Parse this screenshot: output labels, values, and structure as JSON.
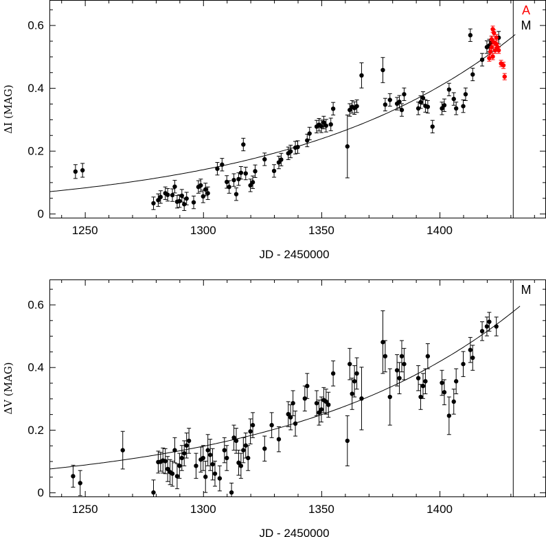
{
  "chart_data": [
    {
      "type": "scatter",
      "xlabel": "JD - 2450000",
      "ylabel": "ΔI (MAG)",
      "xlim": [
        1235,
        1445
      ],
      "ylim": [
        -0.015,
        0.68
      ],
      "xticks": [
        "1250",
        "1300",
        "1350",
        "1400"
      ],
      "yticks": [
        "0",
        "0.2",
        "0.4",
        "0.6"
      ],
      "grid": false,
      "markers": [
        {
          "label": "A",
          "x": 1432,
          "color": "#ff0000",
          "line": false
        },
        {
          "label": "M",
          "x": 1431,
          "color": "#000000",
          "line": true
        }
      ],
      "fit_curve": {
        "x": [
          1235,
          1432
        ],
        "y": [
          0.07,
          0.57
        ]
      },
      "series": [
        {
          "color": "#000000",
          "points": [
            [
              1246,
              0.134,
              0.022
            ],
            [
              1249,
              0.138,
              0.022
            ],
            [
              1279,
              0.033,
              0.02
            ],
            [
              1281,
              0.043,
              0.02
            ],
            [
              1282,
              0.053,
              0.02
            ],
            [
              1284,
              0.065,
              0.02
            ],
            [
              1285,
              0.06,
              0.02
            ],
            [
              1287,
              0.059,
              0.02
            ],
            [
              1288,
              0.086,
              0.02
            ],
            [
              1289,
              0.038,
              0.02
            ],
            [
              1290,
              0.04,
              0.02
            ],
            [
              1291,
              0.057,
              0.02
            ],
            [
              1292,
              0.03,
              0.02
            ],
            [
              1293,
              0.048,
              0.02
            ],
            [
              1296,
              0.036,
              0.02
            ],
            [
              1298,
              0.085,
              0.02
            ],
            [
              1299,
              0.09,
              0.02
            ],
            [
              1300,
              0.055,
              0.02
            ],
            [
              1301,
              0.077,
              0.02
            ],
            [
              1302,
              0.065,
              0.02
            ],
            [
              1306,
              0.143,
              0.02
            ],
            [
              1308,
              0.156,
              0.02
            ],
            [
              1310,
              0.101,
              0.02
            ],
            [
              1311,
              0.085,
              0.02
            ],
            [
              1313,
              0.107,
              0.02
            ],
            [
              1314,
              0.062,
              0.02
            ],
            [
              1315,
              0.11,
              0.02
            ],
            [
              1316,
              0.13,
              0.02
            ],
            [
              1317,
              0.22,
              0.02
            ],
            [
              1318,
              0.128,
              0.02
            ],
            [
              1320,
              0.09,
              0.02
            ],
            [
              1321,
              0.1,
              0.02
            ],
            [
              1322,
              0.135,
              0.02
            ],
            [
              1326,
              0.173,
              0.02
            ],
            [
              1330,
              0.136,
              0.02
            ],
            [
              1332,
              0.163,
              0.02
            ],
            [
              1333,
              0.172,
              0.02
            ],
            [
              1336,
              0.192,
              0.02
            ],
            [
              1337,
              0.198,
              0.02
            ],
            [
              1339,
              0.21,
              0.02
            ],
            [
              1340,
              0.212,
              0.02
            ],
            [
              1344,
              0.233,
              0.02
            ],
            [
              1345,
              0.255,
              0.02
            ],
            [
              1348,
              0.277,
              0.02
            ],
            [
              1349,
              0.283,
              0.02
            ],
            [
              1350,
              0.278,
              0.02
            ],
            [
              1351,
              0.29,
              0.02
            ],
            [
              1352,
              0.28,
              0.02
            ],
            [
              1354,
              0.284,
              0.02
            ],
            [
              1355,
              0.334,
              0.02
            ],
            [
              1361,
              0.214,
              0.1
            ],
            [
              1362,
              0.33,
              0.02
            ],
            [
              1363,
              0.34,
              0.02
            ],
            [
              1364,
              0.336,
              0.02
            ],
            [
              1365,
              0.342,
              0.02
            ],
            [
              1367,
              0.44,
              0.04
            ],
            [
              1376,
              0.457,
              0.04
            ],
            [
              1377,
              0.347,
              0.02
            ],
            [
              1379,
              0.362,
              0.02
            ],
            [
              1382,
              0.35,
              0.02
            ],
            [
              1383,
              0.356,
              0.02
            ],
            [
              1384,
              0.33,
              0.02
            ],
            [
              1385,
              0.38,
              0.02
            ],
            [
              1391,
              0.335,
              0.02
            ],
            [
              1392,
              0.355,
              0.02
            ],
            [
              1393,
              0.368,
              0.02
            ],
            [
              1394,
              0.343,
              0.02
            ],
            [
              1395,
              0.34,
              0.02
            ],
            [
              1397,
              0.277,
              0.02
            ],
            [
              1401,
              0.335,
              0.02
            ],
            [
              1402,
              0.345,
              0.02
            ],
            [
              1404,
              0.395,
              0.02
            ],
            [
              1406,
              0.365,
              0.02
            ],
            [
              1407,
              0.335,
              0.02
            ],
            [
              1410,
              0.342,
              0.02
            ],
            [
              1411,
              0.38,
              0.02
            ],
            [
              1413,
              0.568,
              0.02
            ],
            [
              1414,
              0.443,
              0.02
            ],
            [
              1418,
              0.49,
              0.02
            ],
            [
              1420,
              0.53,
              0.02
            ],
            [
              1421,
              0.535,
              0.02
            ],
            [
              1422,
              0.545,
              0.02
            ],
            [
              1425,
              0.56,
              0.02
            ]
          ]
        },
        {
          "color": "#ff0000",
          "points": [
            [
              1421,
              0.495,
              0.01
            ],
            [
              1421.5,
              0.515,
              0.01
            ],
            [
              1422,
              0.53,
              0.01
            ],
            [
              1422,
              0.555,
              0.01
            ],
            [
              1422.5,
              0.587,
              0.01
            ],
            [
              1422.5,
              0.5,
              0.01
            ],
            [
              1423,
              0.545,
              0.01
            ],
            [
              1423,
              0.575,
              0.01
            ],
            [
              1423.5,
              0.52,
              0.01
            ],
            [
              1424,
              0.54,
              0.01
            ],
            [
              1424,
              0.56,
              0.01
            ],
            [
              1424.5,
              0.53,
              0.01
            ],
            [
              1425,
              0.52,
              0.01
            ],
            [
              1426,
              0.478,
              0.01
            ],
            [
              1427,
              0.472,
              0.01
            ],
            [
              1427.5,
              0.436,
              0.01
            ]
          ]
        }
      ]
    },
    {
      "type": "scatter",
      "xlabel": "JD - 2450000",
      "ylabel": "ΔV (MAG)",
      "xlim": [
        1235,
        1445
      ],
      "ylim": [
        -0.015,
        0.68
      ],
      "xticks": [
        "1250",
        "1300",
        "1350",
        "1400"
      ],
      "yticks": [
        "0",
        "0.2",
        "0.4",
        "0.6"
      ],
      "grid": false,
      "markers": [
        {
          "label": "M",
          "x": 1431,
          "color": "#000000",
          "line": true
        }
      ],
      "fit_curve": {
        "x": [
          1235,
          1434
        ],
        "y": [
          0.075,
          0.595
        ]
      },
      "series": [
        {
          "color": "#000000",
          "points": [
            [
              1245,
              0.052,
              0.035
            ],
            [
              1248,
              0.03,
              0.04
            ],
            [
              1266,
              0.135,
              0.06
            ],
            [
              1279,
              0.0,
              0.04
            ],
            [
              1281,
              0.097,
              0.035
            ],
            [
              1282,
              0.098,
              0.03
            ],
            [
              1283,
              0.102,
              0.04
            ],
            [
              1284,
              0.1,
              0.04
            ],
            [
              1285,
              0.075,
              0.04
            ],
            [
              1286,
              0.065,
              0.04
            ],
            [
              1287,
              0.06,
              0.04
            ],
            [
              1288,
              0.135,
              0.04
            ],
            [
              1289,
              0.052,
              0.04
            ],
            [
              1290,
              0.085,
              0.04
            ],
            [
              1291,
              0.11,
              0.04
            ],
            [
              1292,
              0.125,
              0.04
            ],
            [
              1293,
              0.15,
              0.04
            ],
            [
              1294,
              0.165,
              0.04
            ],
            [
              1297,
              0.085,
              0.04
            ],
            [
              1299,
              0.105,
              0.04
            ],
            [
              1300,
              0.11,
              0.04
            ],
            [
              1301,
              0.05,
              0.05
            ],
            [
              1302,
              0.135,
              0.05
            ],
            [
              1303,
              0.12,
              0.05
            ],
            [
              1304,
              0.09,
              0.05
            ],
            [
              1305,
              0.06,
              0.04
            ],
            [
              1307,
              0.045,
              0.04
            ],
            [
              1309,
              0.135,
              0.04
            ],
            [
              1310,
              0.11,
              0.04
            ],
            [
              1312,
              0.0,
              0.03
            ],
            [
              1313,
              0.175,
              0.04
            ],
            [
              1314,
              0.165,
              0.04
            ],
            [
              1315,
              0.095,
              0.04
            ],
            [
              1316,
              0.085,
              0.04
            ],
            [
              1317,
              0.135,
              0.04
            ],
            [
              1318,
              0.15,
              0.04
            ],
            [
              1319,
              0.11,
              0.04
            ],
            [
              1320,
              0.195,
              0.04
            ],
            [
              1321,
              0.215,
              0.04
            ],
            [
              1326,
              0.14,
              0.04
            ],
            [
              1329,
              0.215,
              0.04
            ],
            [
              1332,
              0.17,
              0.04
            ],
            [
              1336,
              0.25,
              0.04
            ],
            [
              1337,
              0.24,
              0.04
            ],
            [
              1338,
              0.285,
              0.04
            ],
            [
              1339,
              0.22,
              0.04
            ],
            [
              1343,
              0.3,
              0.04
            ],
            [
              1344,
              0.34,
              0.04
            ],
            [
              1348,
              0.285,
              0.04
            ],
            [
              1349,
              0.255,
              0.04
            ],
            [
              1350,
              0.265,
              0.04
            ],
            [
              1351,
              0.295,
              0.04
            ],
            [
              1352,
              0.29,
              0.04
            ],
            [
              1353,
              0.28,
              0.04
            ],
            [
              1355,
              0.38,
              0.04
            ],
            [
              1361,
              0.165,
              0.08
            ],
            [
              1362,
              0.41,
              0.05
            ],
            [
              1363,
              0.315,
              0.05
            ],
            [
              1364,
              0.355,
              0.05
            ],
            [
              1365,
              0.38,
              0.05
            ],
            [
              1367,
              0.3,
              0.1
            ],
            [
              1376,
              0.48,
              0.1
            ],
            [
              1377,
              0.435,
              0.05
            ],
            [
              1379,
              0.305,
              0.09
            ],
            [
              1382,
              0.39,
              0.05
            ],
            [
              1383,
              0.365,
              0.05
            ],
            [
              1384,
              0.435,
              0.05
            ],
            [
              1385,
              0.41,
              0.05
            ],
            [
              1391,
              0.365,
              0.04
            ],
            [
              1392,
              0.305,
              0.04
            ],
            [
              1393,
              0.34,
              0.04
            ],
            [
              1394,
              0.355,
              0.04
            ],
            [
              1395,
              0.435,
              0.04
            ],
            [
              1401,
              0.35,
              0.04
            ],
            [
              1402,
              0.32,
              0.04
            ],
            [
              1404,
              0.245,
              0.06
            ],
            [
              1406,
              0.29,
              0.04
            ],
            [
              1407,
              0.355,
              0.04
            ],
            [
              1410,
              0.41,
              0.04
            ],
            [
              1413,
              0.455,
              0.04
            ],
            [
              1414,
              0.43,
              0.04
            ],
            [
              1418,
              0.515,
              0.03
            ],
            [
              1420,
              0.53,
              0.03
            ],
            [
              1421,
              0.545,
              0.03
            ],
            [
              1424,
              0.53,
              0.03
            ]
          ]
        }
      ]
    }
  ]
}
